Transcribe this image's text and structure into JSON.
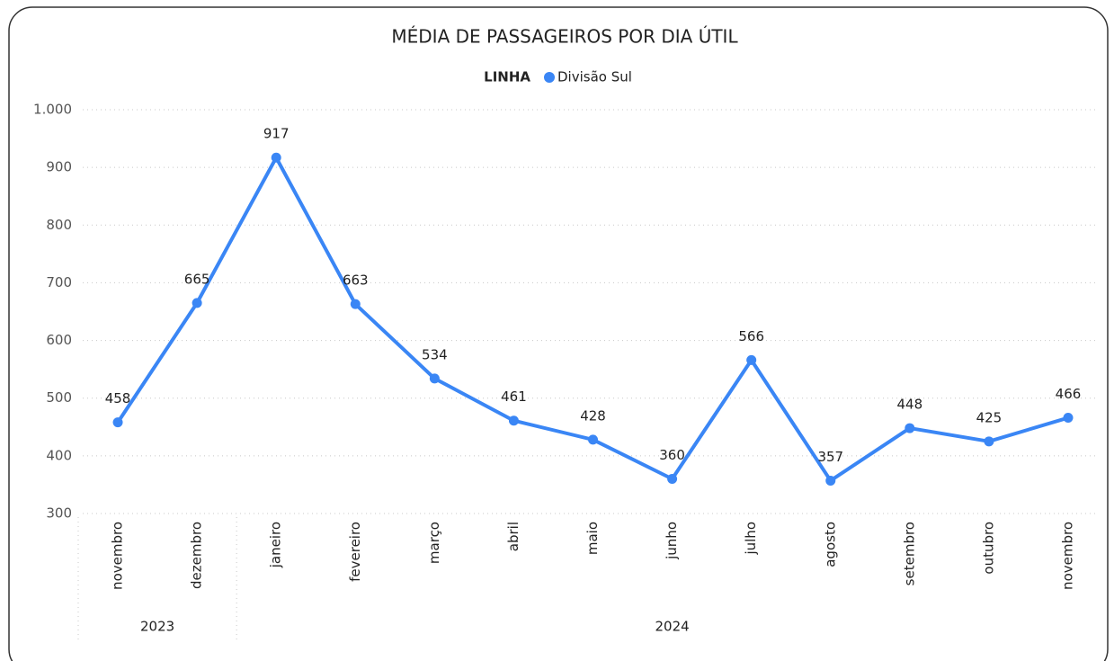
{
  "chart_data": {
    "type": "line",
    "title": "MÉDIA DE PASSAGEIROS POR DIA ÚTIL",
    "legend_title": "LINHA",
    "year_groups": [
      {
        "label": "2023",
        "months": [
          "novembro",
          "dezembro"
        ]
      },
      {
        "label": "2024",
        "months": [
          "janeiro",
          "fevereiro",
          "março",
          "abril",
          "maio",
          "junho",
          "julho",
          "agosto",
          "setembro",
          "outubro",
          "novembro"
        ]
      }
    ],
    "series": [
      {
        "name": "Divisão Sul",
        "color": "#3a86f5",
        "values": [
          458,
          665,
          917,
          663,
          534,
          461,
          428,
          360,
          566,
          357,
          448,
          425,
          466
        ]
      }
    ],
    "ylim": [
      300,
      1000
    ],
    "yticks": [
      300,
      400,
      500,
      600,
      700,
      800,
      900,
      {
        "value": 1000,
        "label": "1.000"
      }
    ],
    "grid": true,
    "legend_position": "top"
  }
}
